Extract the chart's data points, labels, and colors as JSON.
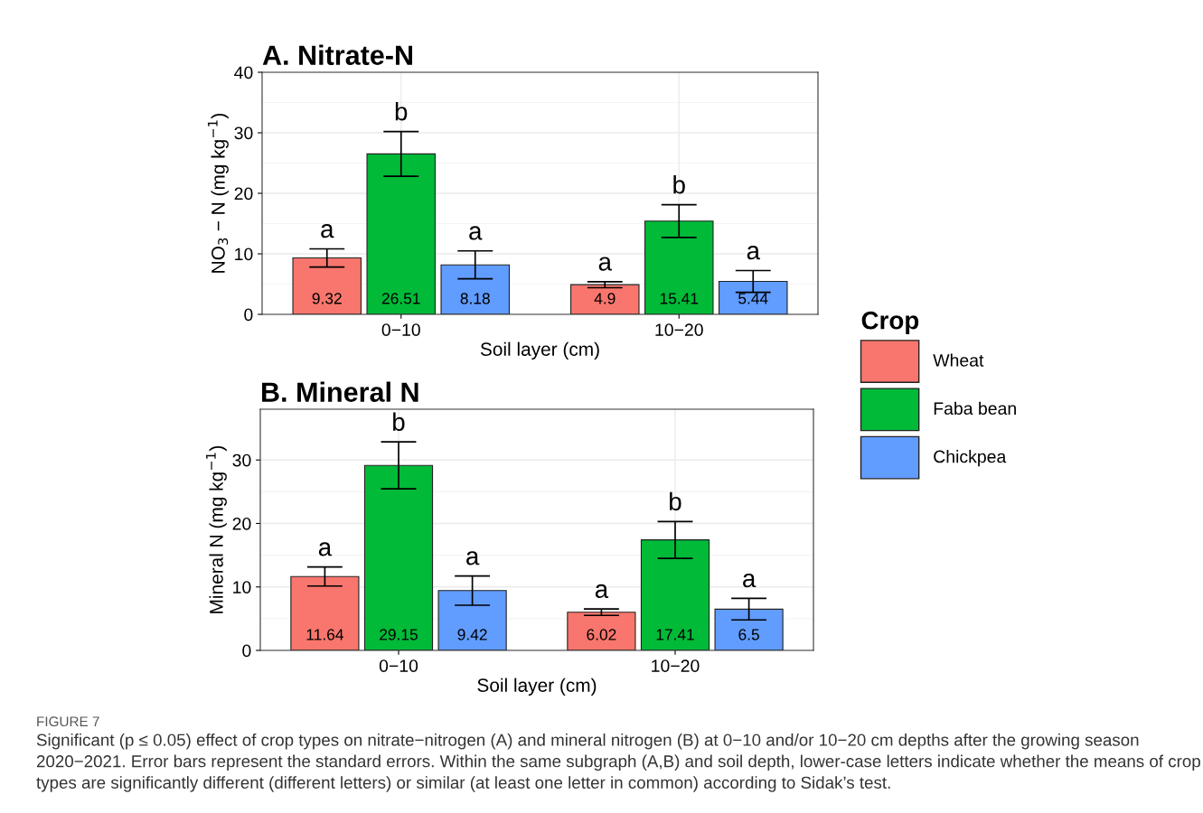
{
  "chart_data": [
    {
      "type": "bar",
      "title": "A. Nitrate-N",
      "xlabel": "Soil layer (cm)",
      "ylabel": "NO$_{3}$ − N (mg kg$^{−1}$)",
      "legend_title": "Crop",
      "legend": "right",
      "grid": true,
      "data_labels": true,
      "categories": [
        "0−10",
        "10−20"
      ],
      "ylim": [
        0,
        40
      ],
      "yticks": [
        0,
        10,
        20,
        30,
        40
      ],
      "series": [
        {
          "name": "Wheat",
          "color": "#f8766d",
          "values": [
            9.32,
            4.9
          ],
          "errors": [
            1.5,
            0.5
          ]
        },
        {
          "name": "Faba bean",
          "color": "#00ba38",
          "values": [
            26.51,
            15.41
          ],
          "errors": [
            3.7,
            2.7
          ]
        },
        {
          "name": "Chickpea",
          "color": "#619cff",
          "values": [
            8.18,
            5.44
          ],
          "errors": [
            2.3,
            1.8
          ]
        }
      ],
      "annotations": [
        "a",
        "b",
        "a",
        "a",
        "b",
        "a"
      ]
    },
    {
      "type": "bar",
      "title": "B. Mineral N",
      "xlabel": "Soil layer (cm)",
      "ylabel": "Mineral N (mg kg$^{−1}$)",
      "grid": true,
      "data_labels": true,
      "categories": [
        "0−10",
        "10−20"
      ],
      "ylim": [
        0,
        38
      ],
      "yticks": [
        0,
        10,
        20,
        30
      ],
      "series": [
        {
          "color": "#f8766d",
          "values": [
            11.64,
            6.02
          ],
          "errors": [
            1.5,
            0.5
          ]
        },
        {
          "color": "#00ba38",
          "values": [
            29.15,
            17.41
          ],
          "errors": [
            3.7,
            2.9
          ]
        },
        {
          "color": "#619cff",
          "values": [
            9.42,
            6.5
          ],
          "errors": [
            2.3,
            1.7
          ]
        }
      ],
      "annotations": [
        "a",
        "b",
        "a",
        "a",
        "b",
        "a",
        "FIGURE 7",
        "Significant (p ≤ 0.05) effect of crop types on nitrate−nitrogen (A) and mineral nitrogen (B) at 0−10 and/or 10−20 cm depths after the growing season 2020−2021. Error bars represent the standard errors. Within the same subgraph (A,B) and soil depth, lower-case letters indicate whether the means of crop types are significantly different (different letters) or similar (at least one letter in common) according to Sidak’s test."
      ]
    }
  ]
}
